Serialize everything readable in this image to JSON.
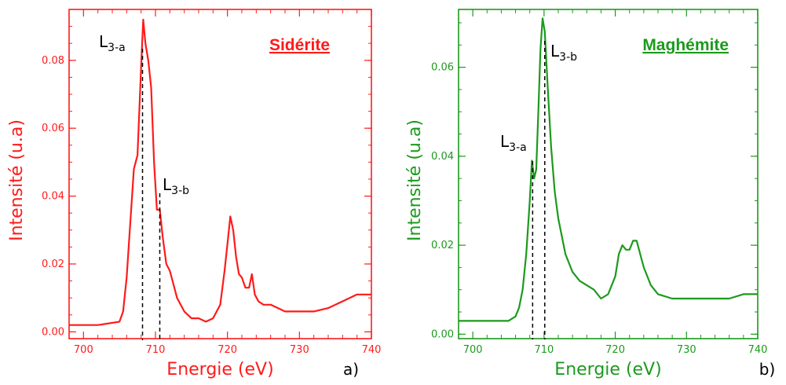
{
  "chart_data": [
    {
      "type": "line",
      "title": "Sidérite",
      "xlabel": "Energie (eV)",
      "ylabel": "Intensité (u.a)",
      "panel_letter": "a)",
      "color": "#ff1a1a",
      "xlim": [
        698,
        740
      ],
      "ylim": [
        -0.002,
        0.095
      ],
      "xticks": [
        700,
        710,
        720,
        730,
        740
      ],
      "yticks": [
        0.0,
        0.02,
        0.04,
        0.06,
        0.08
      ],
      "xticklabels": [
        "700",
        "710",
        "720",
        "730",
        "740"
      ],
      "yticklabels": [
        "0.00",
        "0.02",
        "0.04",
        "0.06",
        "0.08"
      ],
      "series": [
        {
          "x": [
            698,
            702,
            705,
            705.5,
            706,
            706.5,
            707,
            707.5,
            708,
            708.3,
            708.6,
            709,
            709.4,
            709.8,
            710.2,
            710.6,
            711,
            711.5,
            712,
            712.5,
            713,
            714,
            715,
            716,
            717,
            718,
            719,
            719.6,
            720,
            720.4,
            720.8,
            721.2,
            721.6,
            722,
            722.5,
            723,
            723.4,
            723.8,
            724.3,
            725,
            726,
            728,
            730,
            732,
            734,
            736,
            738,
            740
          ],
          "y": [
            0.002,
            0.002,
            0.003,
            0.006,
            0.016,
            0.032,
            0.048,
            0.052,
            0.078,
            0.092,
            0.085,
            0.08,
            0.072,
            0.05,
            0.036,
            0.036,
            0.028,
            0.02,
            0.018,
            0.014,
            0.01,
            0.006,
            0.004,
            0.004,
            0.003,
            0.004,
            0.008,
            0.018,
            0.026,
            0.034,
            0.03,
            0.022,
            0.017,
            0.016,
            0.013,
            0.013,
            0.017,
            0.011,
            0.009,
            0.008,
            0.008,
            0.006,
            0.006,
            0.006,
            0.007,
            0.009,
            0.011,
            0.011
          ]
        }
      ],
      "annotations": [
        {
          "label": "L",
          "sub": "3-a",
          "x": 708.2
        },
        {
          "label": "L",
          "sub": "3-b",
          "x": 710.6
        }
      ]
    },
    {
      "type": "line",
      "title": "Maghémite",
      "xlabel": "Energie (eV)",
      "ylabel": "Intensité (u.a)",
      "panel_letter": "b)",
      "color": "#1c9a1c",
      "xlim": [
        698,
        740
      ],
      "ylim": [
        -0.001,
        0.073
      ],
      "xticks": [
        700,
        710,
        720,
        730,
        740
      ],
      "yticks": [
        0.0,
        0.02,
        0.04,
        0.06
      ],
      "xticklabels": [
        "700",
        "710",
        "720",
        "730",
        "740"
      ],
      "yticklabels": [
        "0.00",
        "0.02",
        "0.04",
        "0.06"
      ],
      "series": [
        {
          "x": [
            698,
            702,
            705,
            706,
            706.5,
            707,
            707.5,
            708,
            708.3,
            708.6,
            708.9,
            709.2,
            709.5,
            709.8,
            710.1,
            710.5,
            711,
            711.5,
            712,
            713,
            714,
            715,
            716,
            717,
            718,
            719,
            720,
            720.5,
            721,
            721.5,
            722,
            722.5,
            723,
            723.5,
            724,
            725,
            726,
            728,
            730,
            732,
            734,
            736,
            738,
            740
          ],
          "y": [
            0.003,
            0.003,
            0.003,
            0.004,
            0.006,
            0.01,
            0.018,
            0.03,
            0.039,
            0.035,
            0.037,
            0.05,
            0.064,
            0.071,
            0.068,
            0.056,
            0.042,
            0.032,
            0.026,
            0.018,
            0.014,
            0.012,
            0.011,
            0.01,
            0.008,
            0.009,
            0.013,
            0.018,
            0.02,
            0.019,
            0.019,
            0.021,
            0.021,
            0.018,
            0.015,
            0.011,
            0.009,
            0.008,
            0.008,
            0.008,
            0.008,
            0.008,
            0.009,
            0.009
          ]
        }
      ],
      "annotations": [
        {
          "label": "L",
          "sub": "3-a",
          "x": 708.4
        },
        {
          "label": "L",
          "sub": "3-b",
          "x": 710.1
        }
      ]
    }
  ]
}
